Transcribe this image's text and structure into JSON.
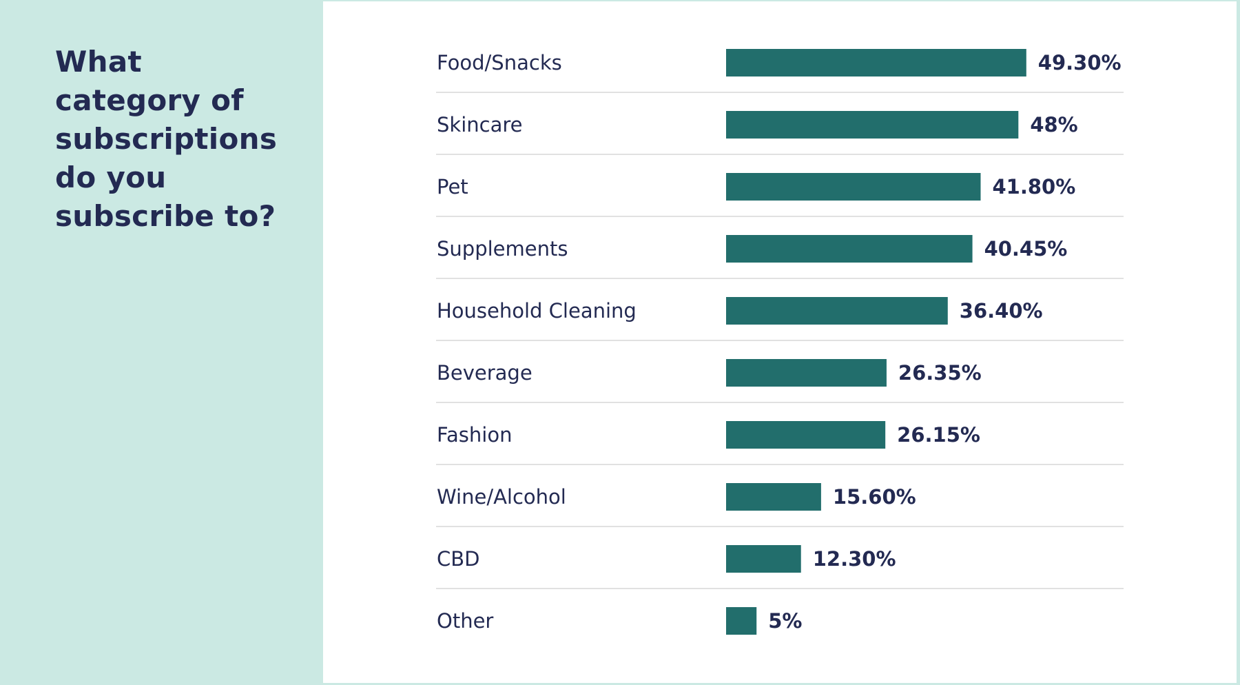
{
  "question": {
    "title": "What category of subscriptions do you subscribe to?"
  },
  "colors": {
    "side_background": "#cbe9e3",
    "main_background": "#ffffff",
    "bar": "#226e6c",
    "text": "#232a52",
    "divider": "#d7d7d7"
  },
  "chart_data": {
    "type": "bar",
    "orientation": "horizontal",
    "categories": [
      "Food/Snacks",
      "Skincare",
      "Pet",
      "Supplements",
      "Household Cleaning",
      "Beverage",
      "Fashion",
      "Wine/Alcohol",
      "CBD",
      "Other"
    ],
    "values": [
      49.3,
      48,
      41.8,
      40.45,
      36.4,
      26.35,
      26.15,
      15.6,
      12.3,
      5
    ],
    "value_labels": [
      "49.30%",
      "48%",
      "41.80%",
      "40.45%",
      "36.40%",
      "26.35%",
      "26.15%",
      "15.60%",
      "12.30%",
      "5%"
    ],
    "title": "What category of subscriptions do you subscribe to?",
    "xlabel": "",
    "ylabel": "",
    "xlim": [
      0,
      50
    ],
    "grid": false,
    "legend": "none"
  }
}
